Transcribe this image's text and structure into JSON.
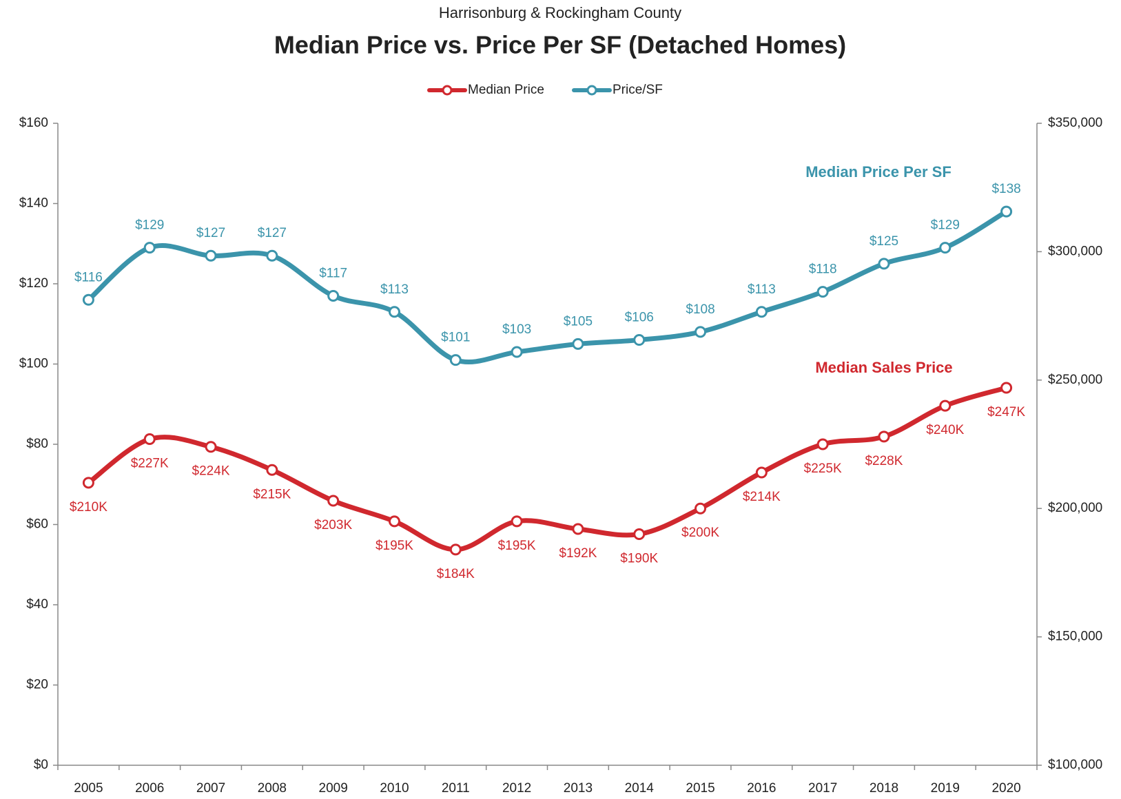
{
  "chart_data": {
    "type": "line",
    "subtitle": "Harrisonburg & Rockingham County",
    "title": "Median Price vs. Price Per SF (Detached Homes)",
    "categories": [
      "2005",
      "2006",
      "2007",
      "2008",
      "2009",
      "2010",
      "2011",
      "2012",
      "2013",
      "2014",
      "2015",
      "2016",
      "2017",
      "2018",
      "2019",
      "2020"
    ],
    "series": [
      {
        "name": "Median Price",
        "color": "#d0282e",
        "axis": "y2",
        "values": [
          210000,
          227000,
          224000,
          215000,
          203000,
          195000,
          184000,
          195000,
          192000,
          190000,
          200000,
          214000,
          225000,
          228000,
          240000,
          247000
        ],
        "value_labels": [
          "$210K",
          "$227K",
          "$224K",
          "$215K",
          "$203K",
          "$195K",
          "$184K",
          "$195K",
          "$192K",
          "$190K",
          "$200K",
          "$214K",
          "$225K",
          "$228K",
          "$240K",
          "$247K"
        ]
      },
      {
        "name": "Price/SF",
        "color": "#3b94ab",
        "values": [
          116,
          129,
          127,
          127,
          117,
          113,
          101,
          103,
          105,
          106,
          108,
          113,
          118,
          125,
          129,
          138
        ],
        "value_labels": [
          "$116",
          "$129",
          "$127",
          "$127",
          "$117",
          "$113",
          "$101",
          "$103",
          "$105",
          "$106",
          "$108",
          "$113",
          "$118",
          "$125",
          "$129",
          "$138"
        ]
      }
    ],
    "annotations": [
      "Median Price Per SF",
      "Median Sales Price"
    ],
    "ylim": [
      0,
      160
    ],
    "yticks": [
      {
        "value": 0,
        "label": "$0"
      },
      {
        "value": 20,
        "label": "$20"
      },
      {
        "value": 40,
        "label": "$40"
      },
      {
        "value": 60,
        "label": "$60"
      },
      {
        "value": 80,
        "label": "$80"
      },
      {
        "value": 100,
        "label": "$100"
      },
      {
        "value": 120,
        "label": "$120"
      },
      {
        "value": 140,
        "label": "$140"
      },
      {
        "value": 160,
        "label": "$160"
      }
    ],
    "y2lim": [
      100000,
      350000
    ],
    "y2ticks": [
      {
        "value": 100000,
        "label": "$100,000"
      },
      {
        "value": 150000,
        "label": "$150,000"
      },
      {
        "value": 200000,
        "label": "$200,000"
      },
      {
        "value": 250000,
        "label": "$250,000"
      },
      {
        "value": 300000,
        "label": "$300,000"
      },
      {
        "value": 350000,
        "label": "$350,000"
      }
    ],
    "grid": false,
    "legend": "top"
  }
}
